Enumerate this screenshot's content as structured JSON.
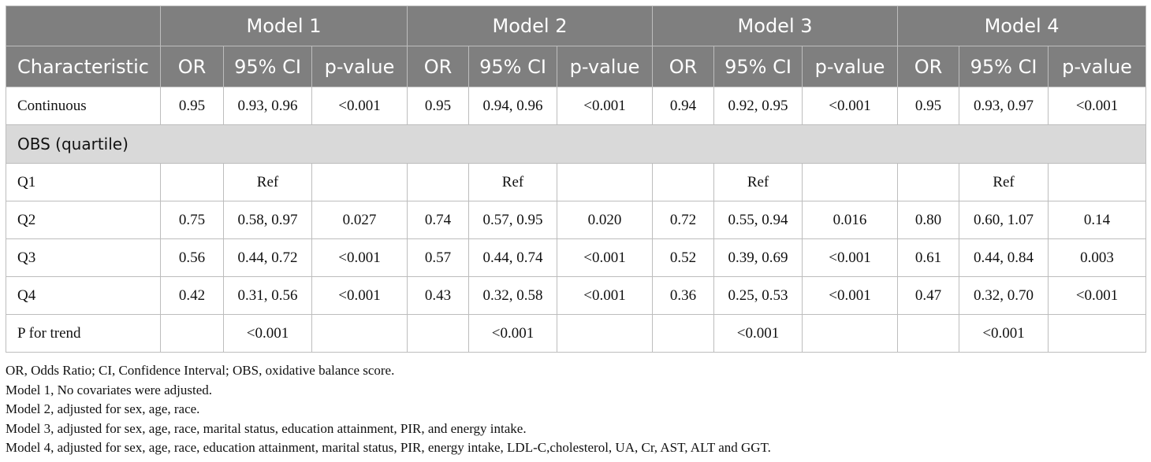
{
  "header": {
    "models": [
      "Model 1",
      "Model 2",
      "Model 3",
      "Model 4"
    ],
    "characteristic": "Characteristic",
    "or": "OR",
    "ci": "95% CI",
    "p": "p-value"
  },
  "continuous": {
    "label": "Continuous",
    "m1": {
      "or": "0.95",
      "ci": "0.93, 0.96",
      "p": "<0.001"
    },
    "m2": {
      "or": "0.95",
      "ci": "0.94, 0.96",
      "p": "<0.001"
    },
    "m3": {
      "or": "0.94",
      "ci": "0.92, 0.95",
      "p": "<0.001"
    },
    "m4": {
      "or": "0.95",
      "ci": "0.93, 0.97",
      "p": "<0.001"
    }
  },
  "group_label": "OBS (quartile)",
  "q1": {
    "label": "Q1",
    "ref": "Ref"
  },
  "q2": {
    "label": "Q2",
    "m1": {
      "or": "0.75",
      "ci": "0.58, 0.97",
      "p": "0.027"
    },
    "m2": {
      "or": "0.74",
      "ci": "0.57, 0.95",
      "p": "0.020"
    },
    "m3": {
      "or": "0.72",
      "ci": "0.55, 0.94",
      "p": "0.016"
    },
    "m4": {
      "or": "0.80",
      "ci": "0.60, 1.07",
      "p": "0.14"
    }
  },
  "q3": {
    "label": "Q3",
    "m1": {
      "or": "0.56",
      "ci": "0.44, 0.72",
      "p": "<0.001"
    },
    "m2": {
      "or": "0.57",
      "ci": "0.44, 0.74",
      "p": "<0.001"
    },
    "m3": {
      "or": "0.52",
      "ci": "0.39, 0.69",
      "p": "<0.001"
    },
    "m4": {
      "or": "0.61",
      "ci": "0.44, 0.84",
      "p": "0.003"
    }
  },
  "q4": {
    "label": "Q4",
    "m1": {
      "or": "0.42",
      "ci": "0.31, 0.56",
      "p": "<0.001"
    },
    "m2": {
      "or": "0.43",
      "ci": "0.32, 0.58",
      "p": "<0.001"
    },
    "m3": {
      "or": "0.36",
      "ci": "0.25, 0.53",
      "p": "<0.001"
    },
    "m4": {
      "or": "0.47",
      "ci": "0.32, 0.70",
      "p": "<0.001"
    }
  },
  "trend": {
    "label": "P for trend",
    "m1": "<0.001",
    "m2": "<0.001",
    "m3": "<0.001",
    "m4": "<0.001"
  },
  "footnotes": [
    "OR, Odds Ratio; CI, Confidence Interval; OBS, oxidative balance score.",
    "Model 1, No covariates were adjusted.",
    "Model 2, adjusted for sex, age, race.",
    "Model 3, adjusted for sex, age, race, marital status, education attainment, PIR, and energy intake.",
    "Model 4, adjusted for sex, age, race, education attainment, marital status, PIR, energy intake, LDL-C,cholesterol, UA, Cr, AST, ALT and GGT."
  ]
}
